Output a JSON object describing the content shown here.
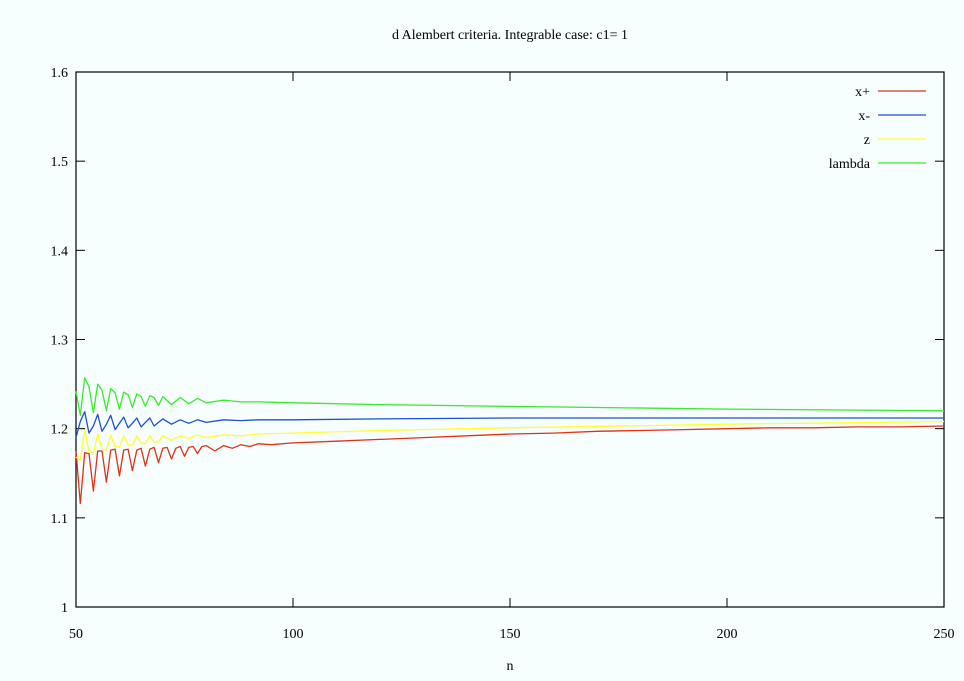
{
  "chart_data": {
    "type": "line",
    "title": "d Alembert criteria. Integrable case: c1= 1",
    "xlabel": "n",
    "ylabel": "",
    "xlim": [
      50,
      250
    ],
    "ylim": [
      1.0,
      1.6
    ],
    "x_ticks": [
      50,
      100,
      150,
      200,
      250
    ],
    "x_tick_labels": [
      "50",
      "100",
      "150",
      "200",
      "250"
    ],
    "y_ticks": [
      1.0,
      1.1,
      1.2,
      1.3,
      1.4,
      1.5,
      1.6
    ],
    "y_tick_labels": [
      "1",
      "1.1",
      "1.2",
      "1.3",
      "1.4",
      "1.5",
      "1.6"
    ],
    "grid": false,
    "legend_position": "top-right",
    "series": [
      {
        "name": "x+",
        "color": "#e0311a",
        "points": [
          [
            50,
            1.175
          ],
          [
            51,
            1.116
          ],
          [
            52,
            1.173
          ],
          [
            53,
            1.172
          ],
          [
            54,
            1.13
          ],
          [
            55,
            1.175
          ],
          [
            56,
            1.175
          ],
          [
            57,
            1.14
          ],
          [
            58,
            1.176
          ],
          [
            59,
            1.177
          ],
          [
            60,
            1.147
          ],
          [
            61,
            1.176
          ],
          [
            62,
            1.177
          ],
          [
            63,
            1.153
          ],
          [
            64,
            1.176
          ],
          [
            65,
            1.178
          ],
          [
            66,
            1.158
          ],
          [
            67,
            1.177
          ],
          [
            68,
            1.179
          ],
          [
            69,
            1.162
          ],
          [
            70,
            1.178
          ],
          [
            71,
            1.179
          ],
          [
            72,
            1.166
          ],
          [
            73,
            1.178
          ],
          [
            74,
            1.18
          ],
          [
            75,
            1.169
          ],
          [
            76,
            1.179
          ],
          [
            77,
            1.18
          ],
          [
            78,
            1.172
          ],
          [
            79,
            1.18
          ],
          [
            80,
            1.181
          ],
          [
            82,
            1.175
          ],
          [
            84,
            1.181
          ],
          [
            86,
            1.178
          ],
          [
            88,
            1.182
          ],
          [
            90,
            1.18
          ],
          [
            92,
            1.183
          ],
          [
            95,
            1.182
          ],
          [
            100,
            1.184
          ],
          [
            110,
            1.186
          ],
          [
            120,
            1.188
          ],
          [
            130,
            1.19
          ],
          [
            140,
            1.192
          ],
          [
            150,
            1.194
          ],
          [
            160,
            1.195
          ],
          [
            170,
            1.197
          ],
          [
            180,
            1.198
          ],
          [
            190,
            1.199
          ],
          [
            200,
            1.2
          ],
          [
            210,
            1.201
          ],
          [
            220,
            1.201
          ],
          [
            230,
            1.202
          ],
          [
            240,
            1.202
          ],
          [
            250,
            1.203
          ]
        ]
      },
      {
        "name": "x-",
        "color": "#1d4fd6",
        "points": [
          [
            50,
            1.19
          ],
          [
            51,
            1.208
          ],
          [
            52,
            1.219
          ],
          [
            53,
            1.195
          ],
          [
            54,
            1.203
          ],
          [
            55,
            1.216
          ],
          [
            56,
            1.197
          ],
          [
            57,
            1.205
          ],
          [
            58,
            1.215
          ],
          [
            59,
            1.199
          ],
          [
            60,
            1.206
          ],
          [
            61,
            1.213
          ],
          [
            62,
            1.201
          ],
          [
            63,
            1.206
          ],
          [
            64,
            1.212
          ],
          [
            65,
            1.202
          ],
          [
            66,
            1.207
          ],
          [
            67,
            1.212
          ],
          [
            68,
            1.203
          ],
          [
            69,
            1.207
          ],
          [
            70,
            1.211
          ],
          [
            72,
            1.205
          ],
          [
            74,
            1.21
          ],
          [
            76,
            1.206
          ],
          [
            78,
            1.21
          ],
          [
            80,
            1.207
          ],
          [
            84,
            1.21
          ],
          [
            88,
            1.209
          ],
          [
            92,
            1.21
          ],
          [
            100,
            1.21
          ],
          [
            120,
            1.211
          ],
          [
            150,
            1.212
          ],
          [
            200,
            1.212
          ],
          [
            250,
            1.212
          ]
        ]
      },
      {
        "name": "z",
        "color": "#ffff2e",
        "points": [
          [
            50,
            1.168
          ],
          [
            51,
            1.165
          ],
          [
            52,
            1.198
          ],
          [
            53,
            1.174
          ],
          [
            54,
            1.173
          ],
          [
            55,
            1.194
          ],
          [
            56,
            1.177
          ],
          [
            57,
            1.176
          ],
          [
            58,
            1.193
          ],
          [
            59,
            1.18
          ],
          [
            60,
            1.179
          ],
          [
            61,
            1.192
          ],
          [
            62,
            1.182
          ],
          [
            63,
            1.181
          ],
          [
            64,
            1.192
          ],
          [
            65,
            1.184
          ],
          [
            66,
            1.183
          ],
          [
            67,
            1.192
          ],
          [
            68,
            1.185
          ],
          [
            69,
            1.185
          ],
          [
            70,
            1.192
          ],
          [
            72,
            1.187
          ],
          [
            74,
            1.192
          ],
          [
            76,
            1.189
          ],
          [
            78,
            1.193
          ],
          [
            80,
            1.19
          ],
          [
            84,
            1.193
          ],
          [
            88,
            1.192
          ],
          [
            92,
            1.194
          ],
          [
            100,
            1.195
          ],
          [
            120,
            1.198
          ],
          [
            150,
            1.201
          ],
          [
            200,
            1.205
          ],
          [
            250,
            1.208
          ]
        ]
      },
      {
        "name": "lambda",
        "color": "#3aea2c",
        "points": [
          [
            50,
            1.242
          ],
          [
            51,
            1.215
          ],
          [
            52,
            1.257
          ],
          [
            53,
            1.247
          ],
          [
            54,
            1.218
          ],
          [
            55,
            1.25
          ],
          [
            56,
            1.243
          ],
          [
            57,
            1.22
          ],
          [
            58,
            1.245
          ],
          [
            59,
            1.24
          ],
          [
            60,
            1.222
          ],
          [
            61,
            1.241
          ],
          [
            62,
            1.238
          ],
          [
            63,
            1.224
          ],
          [
            64,
            1.239
          ],
          [
            65,
            1.236
          ],
          [
            66,
            1.225
          ],
          [
            67,
            1.237
          ],
          [
            68,
            1.235
          ],
          [
            69,
            1.226
          ],
          [
            70,
            1.236
          ],
          [
            72,
            1.227
          ],
          [
            74,
            1.235
          ],
          [
            76,
            1.228
          ],
          [
            78,
            1.234
          ],
          [
            80,
            1.229
          ],
          [
            84,
            1.232
          ],
          [
            88,
            1.23
          ],
          [
            92,
            1.23
          ],
          [
            100,
            1.229
          ],
          [
            120,
            1.227
          ],
          [
            150,
            1.225
          ],
          [
            200,
            1.222
          ],
          [
            250,
            1.22
          ]
        ]
      }
    ]
  }
}
